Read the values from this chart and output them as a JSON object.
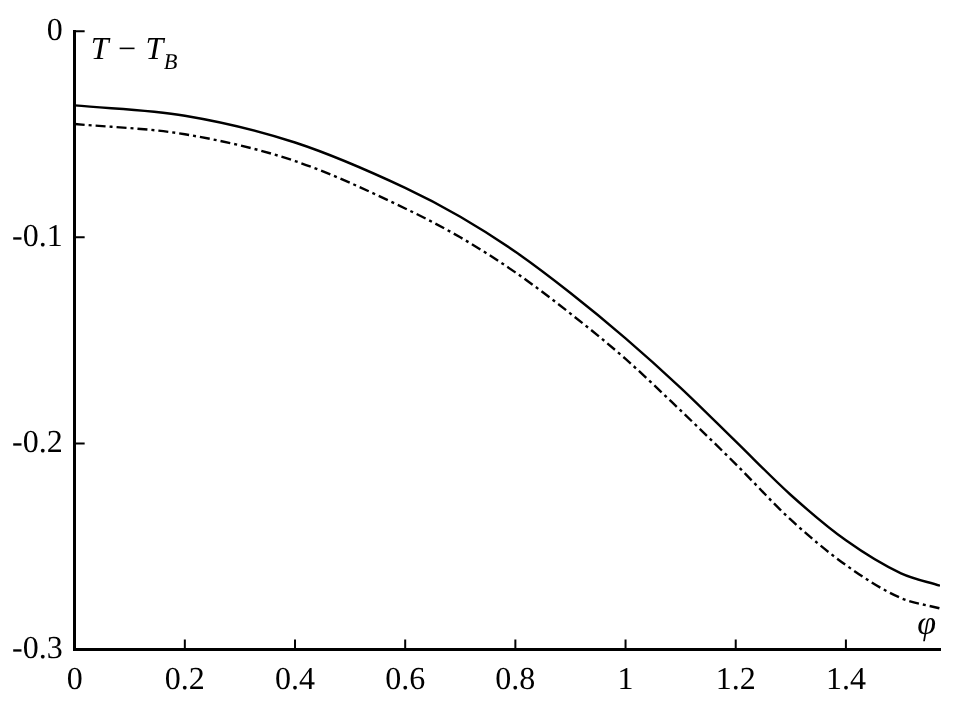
{
  "chart_data": {
    "type": "line",
    "xlabel": "φ",
    "ylabel": "T − T$_{B}$",
    "xlim": [
      0,
      1.5708
    ],
    "xticks": [
      0,
      0.2,
      0.4,
      0.6,
      0.8,
      1,
      1.2,
      1.4
    ],
    "ylim": [
      -0.3,
      0
    ],
    "yticks": [
      -0.3,
      -0.2,
      -0.1,
      0
    ],
    "grid": false,
    "legend": false,
    "marker": "none",
    "x": [
      0,
      0.2,
      0.4,
      0.6,
      0.7,
      0.8,
      0.9,
      1.0,
      1.1,
      1.2,
      1.3,
      1.4,
      1.5,
      1.5708
    ],
    "series": [
      {
        "color": "#000000",
        "line_style": "solid",
        "values": [
          -0.036,
          -0.041,
          -0.054,
          -0.076,
          -0.09,
          -0.107,
          -0.127,
          -0.149,
          -0.173,
          -0.199,
          -0.225,
          -0.247,
          -0.263,
          -0.269
        ]
      },
      {
        "color": "#000000",
        "line_style": "dashed",
        "values": [
          -0.045,
          -0.05,
          -0.063,
          -0.086,
          -0.1,
          -0.117,
          -0.137,
          -0.159,
          -0.184,
          -0.21,
          -0.237,
          -0.259,
          -0.275,
          -0.28
        ]
      }
    ]
  }
}
